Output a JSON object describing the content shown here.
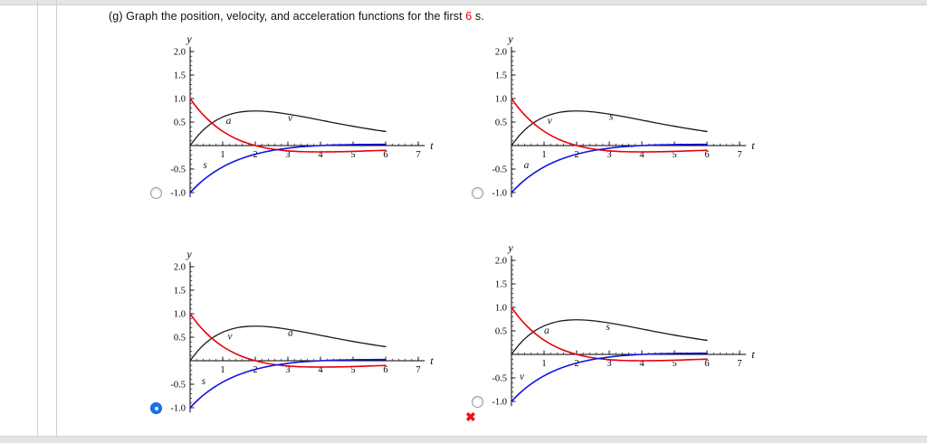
{
  "page": {
    "question_label": "(g)",
    "question_text": "Graph the position, velocity, and acceleration functions for the first",
    "question_highlight": "6",
    "question_suffix": "s.",
    "highlight_color": "#e8000d",
    "incorrect_mark": "✖"
  },
  "chart_data": {
    "type": "line",
    "title": "",
    "x_label": "t",
    "y_label": "y",
    "xlim": [
      0,
      7.2
    ],
    "ylim": [
      -1.1,
      2.1
    ],
    "grid": false,
    "x_ticks": [
      {
        "value": 1,
        "label": "1"
      },
      {
        "value": 2,
        "label": "2"
      },
      {
        "value": 3,
        "label": "3"
      },
      {
        "value": 4,
        "label": "4"
      },
      {
        "value": 5,
        "label": "5"
      },
      {
        "value": 6,
        "label": "6"
      },
      {
        "value": 7,
        "label": "7"
      }
    ],
    "y_ticks": [
      {
        "value": 2.0,
        "label": "2.0"
      },
      {
        "value": 1.5,
        "label": "1.5"
      },
      {
        "value": 1.0,
        "label": "1.0"
      },
      {
        "value": 0.5,
        "label": "0.5"
      },
      {
        "value": -0.5,
        "label": "-0.5"
      },
      {
        "value": -1.0,
        "label": "-1.0"
      }
    ],
    "t": [
      0,
      0.25,
      0.5,
      0.75,
      1,
      1.25,
      1.5,
      1.75,
      2,
      2.25,
      2.5,
      2.75,
      3,
      3.25,
      3.5,
      3.75,
      4,
      4.25,
      4.5,
      4.75,
      5,
      5.25,
      5.5,
      5.75,
      6
    ],
    "series": [
      {
        "id": "black",
        "description": "hump curve rising from 0 to ~0.74 at t=2 then decaying",
        "color": "#1a1a1a",
        "stroke_width": 1.3,
        "values": [
          0,
          0.221,
          0.389,
          0.515,
          0.607,
          0.669,
          0.709,
          0.73,
          0.736,
          0.731,
          0.716,
          0.695,
          0.669,
          0.64,
          0.608,
          0.575,
          0.541,
          0.508,
          0.474,
          0.442,
          0.41,
          0.38,
          0.352,
          0.324,
          0.299
        ]
      },
      {
        "id": "red",
        "description": "curve starting at 1.0, decreasing through 0 near t=2, small negative dip then approaching 0",
        "color": "#e8000d",
        "stroke_width": 1.6,
        "values": [
          1,
          0.772,
          0.584,
          0.43,
          0.303,
          0.201,
          0.118,
          0.052,
          0,
          -0.041,
          -0.072,
          -0.095,
          -0.112,
          -0.123,
          -0.13,
          -0.134,
          -0.135,
          -0.134,
          -0.132,
          -0.128,
          -0.123,
          -0.118,
          -0.112,
          -0.106,
          -0.1
        ]
      },
      {
        "id": "blue",
        "description": "curve starting at -1.0, increasing through 0 then hugging axis slightly above it",
        "color": "#1414e0",
        "stroke_width": 1.6,
        "values": [
          -1,
          -0.827,
          -0.681,
          -0.558,
          -0.455,
          -0.368,
          -0.295,
          -0.235,
          -0.184,
          -0.142,
          -0.107,
          -0.079,
          -0.056,
          -0.037,
          -0.022,
          -0.01,
          0,
          0.008,
          0.013,
          0.017,
          0.021,
          0.023,
          0.024,
          0.025,
          0.025
        ]
      }
    ],
    "options": [
      {
        "id": "A",
        "selected": false,
        "curve_labels": [
          {
            "series": "red",
            "text": "a",
            "t": 1.1,
            "y": 0.46
          },
          {
            "series": "black",
            "text": "v",
            "t": 3.0,
            "y": 0.52
          },
          {
            "series": "blue",
            "text": "s",
            "t": 0.4,
            "y": -0.48
          }
        ]
      },
      {
        "id": "B",
        "selected": false,
        "curve_labels": [
          {
            "series": "red",
            "text": "v",
            "t": 1.1,
            "y": 0.46
          },
          {
            "series": "black",
            "text": "s",
            "t": 3.0,
            "y": 0.55
          },
          {
            "series": "blue",
            "text": "a",
            "t": 0.38,
            "y": -0.48
          }
        ]
      },
      {
        "id": "C",
        "selected": true,
        "curve_labels": [
          {
            "series": "red",
            "text": "v",
            "t": 1.15,
            "y": 0.45
          },
          {
            "series": "black",
            "text": "a",
            "t": 3.0,
            "y": 0.53
          },
          {
            "series": "blue",
            "text": "s",
            "t": 0.35,
            "y": -0.5
          }
        ]
      },
      {
        "id": "D",
        "selected": false,
        "curve_labels": [
          {
            "series": "red",
            "text": "a",
            "t": 1.0,
            "y": 0.44
          },
          {
            "series": "black",
            "text": "s",
            "t": 2.9,
            "y": 0.52
          },
          {
            "series": "blue",
            "text": "v",
            "t": 0.25,
            "y": -0.54
          }
        ]
      }
    ]
  }
}
